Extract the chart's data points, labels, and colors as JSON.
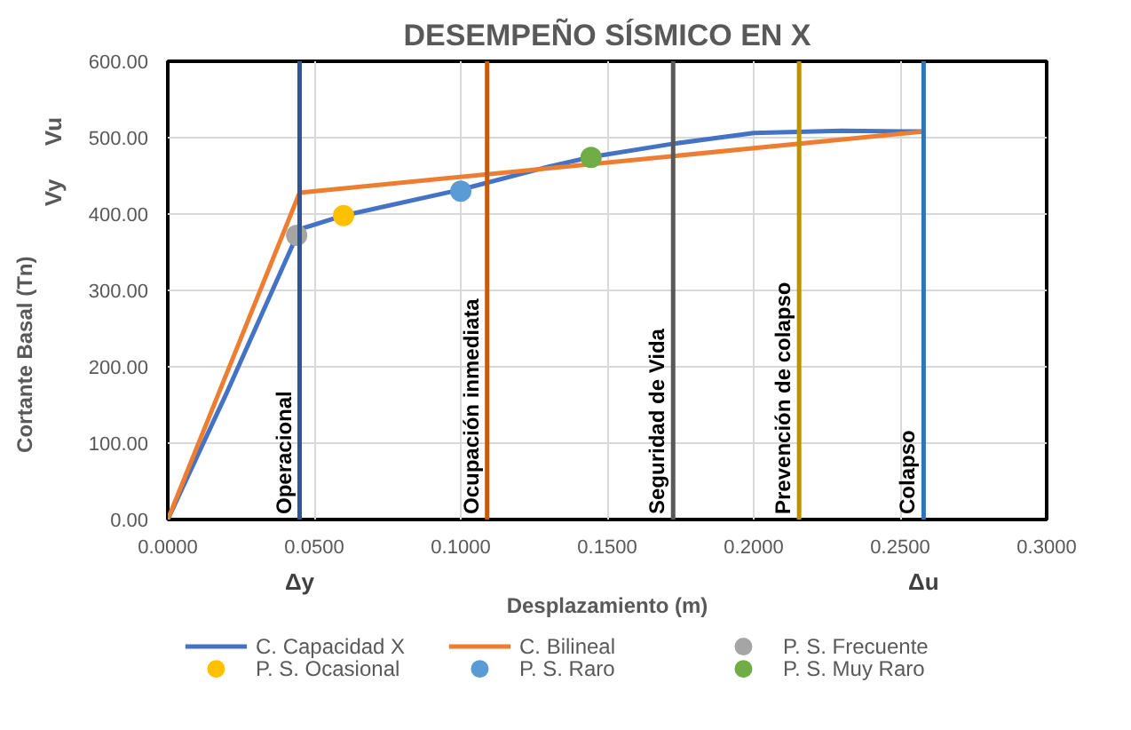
{
  "chart_data": {
    "type": "line",
    "title": "DESEMPEÑO SÍSMICO EN X",
    "xlabel": "Desplazamiento (m)",
    "ylabel": "Cortante Basal (Tn)",
    "xlim": [
      0,
      0.3
    ],
    "ylim": [
      0,
      600
    ],
    "xticks": [
      {
        "value": 0,
        "label": "0.0000"
      },
      {
        "value": 0.05,
        "label": "0.0500"
      },
      {
        "value": 0.1,
        "label": "0.1000"
      },
      {
        "value": 0.15,
        "label": "0.1500"
      },
      {
        "value": 0.2,
        "label": "0.2000"
      },
      {
        "value": 0.25,
        "label": "0.2500"
      },
      {
        "value": 0.3,
        "label": "0.3000"
      }
    ],
    "yticks": [
      {
        "value": 0,
        "label": "0.00"
      },
      {
        "value": 100,
        "label": "100.00"
      },
      {
        "value": 200,
        "label": "200.00"
      },
      {
        "value": 300,
        "label": "300.00"
      },
      {
        "value": 400,
        "label": "400.00"
      },
      {
        "value": 500,
        "label": "500.00"
      },
      {
        "value": 600,
        "label": "600.00"
      }
    ],
    "grid": true,
    "legend": "bottom",
    "line_style": "solid",
    "series": [
      {
        "name": "C. Capacidad X",
        "color": "#4472c4",
        "x": [
          0,
          0.02,
          0.045,
          0.06,
          0.1,
          0.13,
          0.145,
          0.1725,
          0.2,
          0.23,
          0.258
        ],
        "values": [
          0,
          165,
          380,
          398,
          432,
          462,
          475,
          492,
          506,
          509,
          508
        ]
      },
      {
        "name": "C. Bilineal",
        "color": "#ed7d31",
        "x": [
          0,
          0.045,
          0.258
        ],
        "values": [
          0,
          428,
          508
        ]
      },
      {
        "name": "P. S. Frecuente",
        "type": "scatter",
        "marker": "circle",
        "color": "#a5a5a5",
        "x": [
          0.044
        ],
        "values": [
          372
        ]
      },
      {
        "name": "P. S. Ocasional",
        "type": "scatter",
        "marker": "circle",
        "color": "#ffc000",
        "x": [
          0.06
        ],
        "values": [
          398
        ]
      },
      {
        "name": "P. S. Raro",
        "type": "scatter",
        "marker": "circle",
        "color": "#5b9bd5",
        "x": [
          0.1
        ],
        "values": [
          430
        ]
      },
      {
        "name": "P. S. Muy Raro",
        "type": "scatter",
        "marker": "circle",
        "color": "#70ad47",
        "x": [
          0.1445
        ],
        "values": [
          474
        ]
      }
    ],
    "ref_lines": [
      {
        "axis": "x",
        "value": 0.045,
        "label": "Operacional",
        "color": "#2f5597"
      },
      {
        "axis": "x",
        "value": 0.109,
        "label": "Ocupación inmediata",
        "color": "#c55a11"
      },
      {
        "axis": "x",
        "value": 0.1725,
        "label": "Seguridad de Vida",
        "color": "#595959"
      },
      {
        "axis": "x",
        "value": 0.2155,
        "label": "Prevención de colapso",
        "color": "#bf9000"
      },
      {
        "axis": "x",
        "value": 0.258,
        "label": "Colapso",
        "color": "#2e75b6"
      }
    ],
    "annotations": [
      "Vy",
      "Vu",
      "Δy",
      "Δu"
    ]
  }
}
